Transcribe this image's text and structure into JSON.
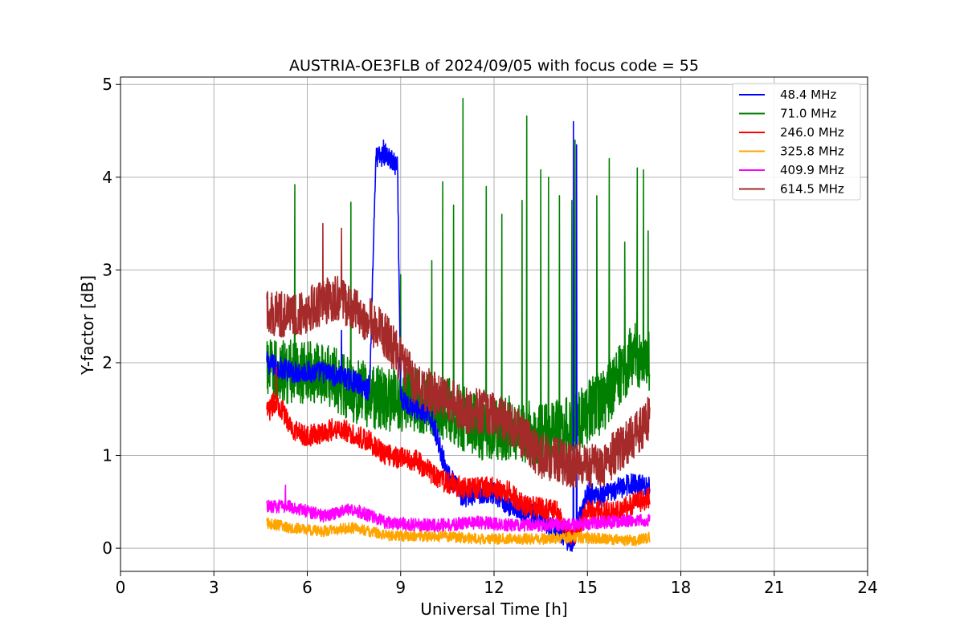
{
  "chart_data": {
    "type": "line",
    "title": "AUSTRIA-OE3FLB of 2024/09/05 with focus code = 55",
    "xlabel": "Universal Time [h]",
    "ylabel": "Y-factor [dB]",
    "xlim": [
      0,
      24
    ],
    "ylim": [
      -0.25,
      5.08
    ],
    "xticks": [
      0,
      3,
      6,
      9,
      12,
      15,
      18,
      21,
      24
    ],
    "xtick_labels": [
      "0",
      "3",
      "6",
      "9",
      "12",
      "15",
      "18",
      "21",
      "24"
    ],
    "yticks": [
      0,
      1,
      2,
      3,
      4,
      5
    ],
    "ytick_labels": [
      "0",
      "1",
      "2",
      "3",
      "4",
      "5"
    ],
    "grid": true,
    "legend_position": "top-right",
    "data_range_hours": [
      4.7,
      17.0
    ],
    "series": [
      {
        "name": " 48.4 MHz",
        "color": "#0000ff",
        "x": [
          4.7,
          5.5,
          6.5,
          7.5,
          8.0,
          8.2,
          8.5,
          8.9,
          9.0,
          9.5,
          10.0,
          10.5,
          11.0,
          11.5,
          12.0,
          12.5,
          13.0,
          13.5,
          14.0,
          14.5,
          15.0,
          15.5,
          16.0,
          16.5,
          17.0
        ],
        "values": [
          2.0,
          1.9,
          1.9,
          1.8,
          1.7,
          4.2,
          4.25,
          4.1,
          1.6,
          1.5,
          1.4,
          0.8,
          0.55,
          0.6,
          0.6,
          0.45,
          0.4,
          0.3,
          0.2,
          0.05,
          0.6,
          0.55,
          0.65,
          0.7,
          0.65
        ],
        "noise": 0.12,
        "spikes": [
          [
            7.1,
            2.35
          ],
          [
            8.45,
            4.4
          ],
          [
            14.55,
            4.6
          ],
          [
            14.65,
            4.35
          ]
        ]
      },
      {
        "name": " 71.0 MHz",
        "color": "#008000",
        "x": [
          4.7,
          5.5,
          6.5,
          7.5,
          8.5,
          9.5,
          10.5,
          11.5,
          12.5,
          13.5,
          14.5,
          15.5,
          16.5,
          17.0
        ],
        "values": [
          1.9,
          1.9,
          1.9,
          1.7,
          1.6,
          1.6,
          1.5,
          1.3,
          1.3,
          1.2,
          1.3,
          1.6,
          2.1,
          2.0
        ],
        "noise": 0.35,
        "spikes": [
          [
            5.6,
            3.92
          ],
          [
            7.4,
            3.73
          ],
          [
            9.0,
            2.95
          ],
          [
            10.0,
            3.1
          ],
          [
            10.35,
            3.95
          ],
          [
            10.7,
            3.7
          ],
          [
            11.0,
            4.85
          ],
          [
            11.75,
            3.9
          ],
          [
            12.25,
            3.6
          ],
          [
            12.9,
            3.75
          ],
          [
            13.05,
            4.66
          ],
          [
            13.5,
            4.08
          ],
          [
            13.75,
            4.0
          ],
          [
            14.1,
            3.8
          ],
          [
            14.5,
            3.75
          ],
          [
            14.6,
            4.4
          ],
          [
            15.3,
            3.8
          ],
          [
            15.7,
            4.2
          ],
          [
            16.2,
            3.3
          ],
          [
            16.6,
            4.1
          ],
          [
            16.8,
            4.08
          ],
          [
            16.95,
            3.42
          ]
        ]
      },
      {
        "name": "246.0 MHz",
        "color": "#ff0000",
        "x": [
          4.7,
          5.0,
          5.5,
          6.0,
          7.0,
          8.0,
          8.5,
          9.5,
          10.0,
          10.5,
          11.0,
          12.0,
          12.5,
          13.0,
          14.0,
          14.5,
          15.0,
          16.0,
          17.0
        ],
        "values": [
          1.45,
          1.6,
          1.3,
          1.2,
          1.3,
          1.15,
          1.0,
          0.95,
          0.8,
          0.7,
          0.65,
          0.65,
          0.6,
          0.45,
          0.4,
          0.1,
          0.4,
          0.4,
          0.55
        ],
        "noise": 0.12,
        "spikes": [
          [
            5.0,
            1.95
          ]
        ]
      },
      {
        "name": "325.8 MHz",
        "color": "#ffa500",
        "x": [
          4.7,
          5.5,
          6.5,
          7.5,
          8.5,
          9.5,
          10.5,
          11.5,
          12.5,
          13.5,
          14.5,
          15.5,
          16.5,
          17.0
        ],
        "values": [
          0.27,
          0.22,
          0.18,
          0.22,
          0.14,
          0.13,
          0.13,
          0.1,
          0.1,
          0.1,
          0.12,
          0.1,
          0.08,
          0.12
        ],
        "noise": 0.06,
        "spikes": []
      },
      {
        "name": "409.9 MHz",
        "color": "#ff00ff",
        "x": [
          4.7,
          5.5,
          6.5,
          7.5,
          8.5,
          9.5,
          10.5,
          11.5,
          12.5,
          13.5,
          14.5,
          15.5,
          16.5,
          17.0
        ],
        "values": [
          0.45,
          0.45,
          0.35,
          0.42,
          0.28,
          0.25,
          0.25,
          0.28,
          0.25,
          0.25,
          0.25,
          0.28,
          0.3,
          0.3
        ],
        "noise": 0.07,
        "spikes": [
          [
            5.3,
            0.68
          ]
        ]
      },
      {
        "name": "614.5 MHz",
        "color": "#a52a2a",
        "x": [
          4.7,
          5.5,
          6.5,
          7.0,
          8.0,
          8.5,
          9.5,
          10.5,
          11.0,
          12.0,
          12.5,
          13.5,
          14.5,
          15.5,
          16.5,
          17.0
        ],
        "values": [
          2.55,
          2.5,
          2.65,
          2.7,
          2.45,
          2.3,
          1.75,
          1.6,
          1.5,
          1.45,
          1.35,
          1.0,
          0.9,
          0.9,
          1.2,
          1.4
        ],
        "noise": 0.25,
        "spikes": [
          [
            6.5,
            3.5
          ],
          [
            7.1,
            3.45
          ]
        ]
      }
    ]
  }
}
